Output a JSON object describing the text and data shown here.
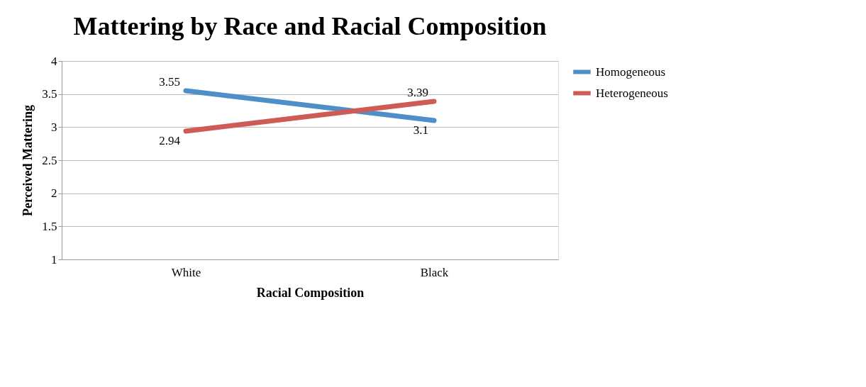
{
  "chart_data": {
    "type": "line",
    "title": "Mattering by Race and Racial Composition",
    "xlabel": "Racial Composition",
    "ylabel": "Perceived Mattering",
    "categories": [
      "White",
      "Black"
    ],
    "series": [
      {
        "name": "Homogeneous",
        "color": "#4f8fc8",
        "values": [
          3.55,
          3.1
        ]
      },
      {
        "name": "Heterogeneous",
        "color": "#cf5b57",
        "values": [
          2.94,
          3.39
        ]
      }
    ],
    "ylim": [
      1,
      4
    ],
    "yticks": [
      1,
      1.5,
      2,
      2.5,
      3,
      3.5,
      4
    ],
    "grid": "y",
    "legend": "right",
    "data_labels": true,
    "marker": "none",
    "line_style": "solid"
  }
}
